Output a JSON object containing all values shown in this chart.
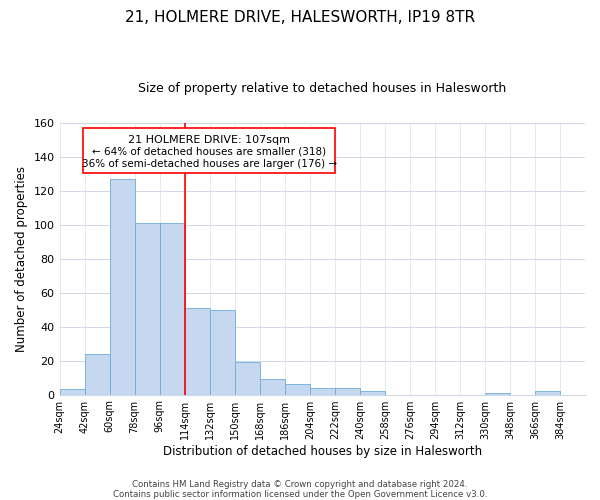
{
  "title": "21, HOLMERE DRIVE, HALESWORTH, IP19 8TR",
  "subtitle": "Size of property relative to detached houses in Halesworth",
  "xlabel": "Distribution of detached houses by size in Halesworth",
  "ylabel": "Number of detached properties",
  "bar_edges": [
    24,
    42,
    60,
    78,
    96,
    114,
    132,
    150,
    168,
    186,
    204,
    222,
    240,
    258,
    276,
    294,
    312,
    330,
    348,
    366,
    384
  ],
  "bar_heights": [
    3,
    24,
    127,
    101,
    101,
    51,
    50,
    19,
    9,
    6,
    4,
    4,
    2,
    0,
    0,
    0,
    0,
    1,
    0,
    2
  ],
  "bar_color": "#c5d8f0",
  "bar_edgecolor": "#6baed6",
  "reference_line_x": 114,
  "reference_line_color": "red",
  "ylim": [
    0,
    160
  ],
  "yticks": [
    0,
    20,
    40,
    60,
    80,
    100,
    120,
    140,
    160
  ],
  "annotation_box_title": "21 HOLMERE DRIVE: 107sqm",
  "annotation_line1": "← 64% of detached houses are smaller (318)",
  "annotation_line2": "36% of semi-detached houses are larger (176) →",
  "footer_line1": "Contains HM Land Registry data © Crown copyright and database right 2024.",
  "footer_line2": "Contains public sector information licensed under the Open Government Licence v3.0.",
  "tick_labels": [
    "24sqm",
    "42sqm",
    "60sqm",
    "78sqm",
    "96sqm",
    "114sqm",
    "132sqm",
    "150sqm",
    "168sqm",
    "186sqm",
    "204sqm",
    "222sqm",
    "240sqm",
    "258sqm",
    "276sqm",
    "294sqm",
    "312sqm",
    "330sqm",
    "348sqm",
    "366sqm",
    "384sqm"
  ],
  "background_color": "#ffffff",
  "grid_color": "#d0d8e8"
}
